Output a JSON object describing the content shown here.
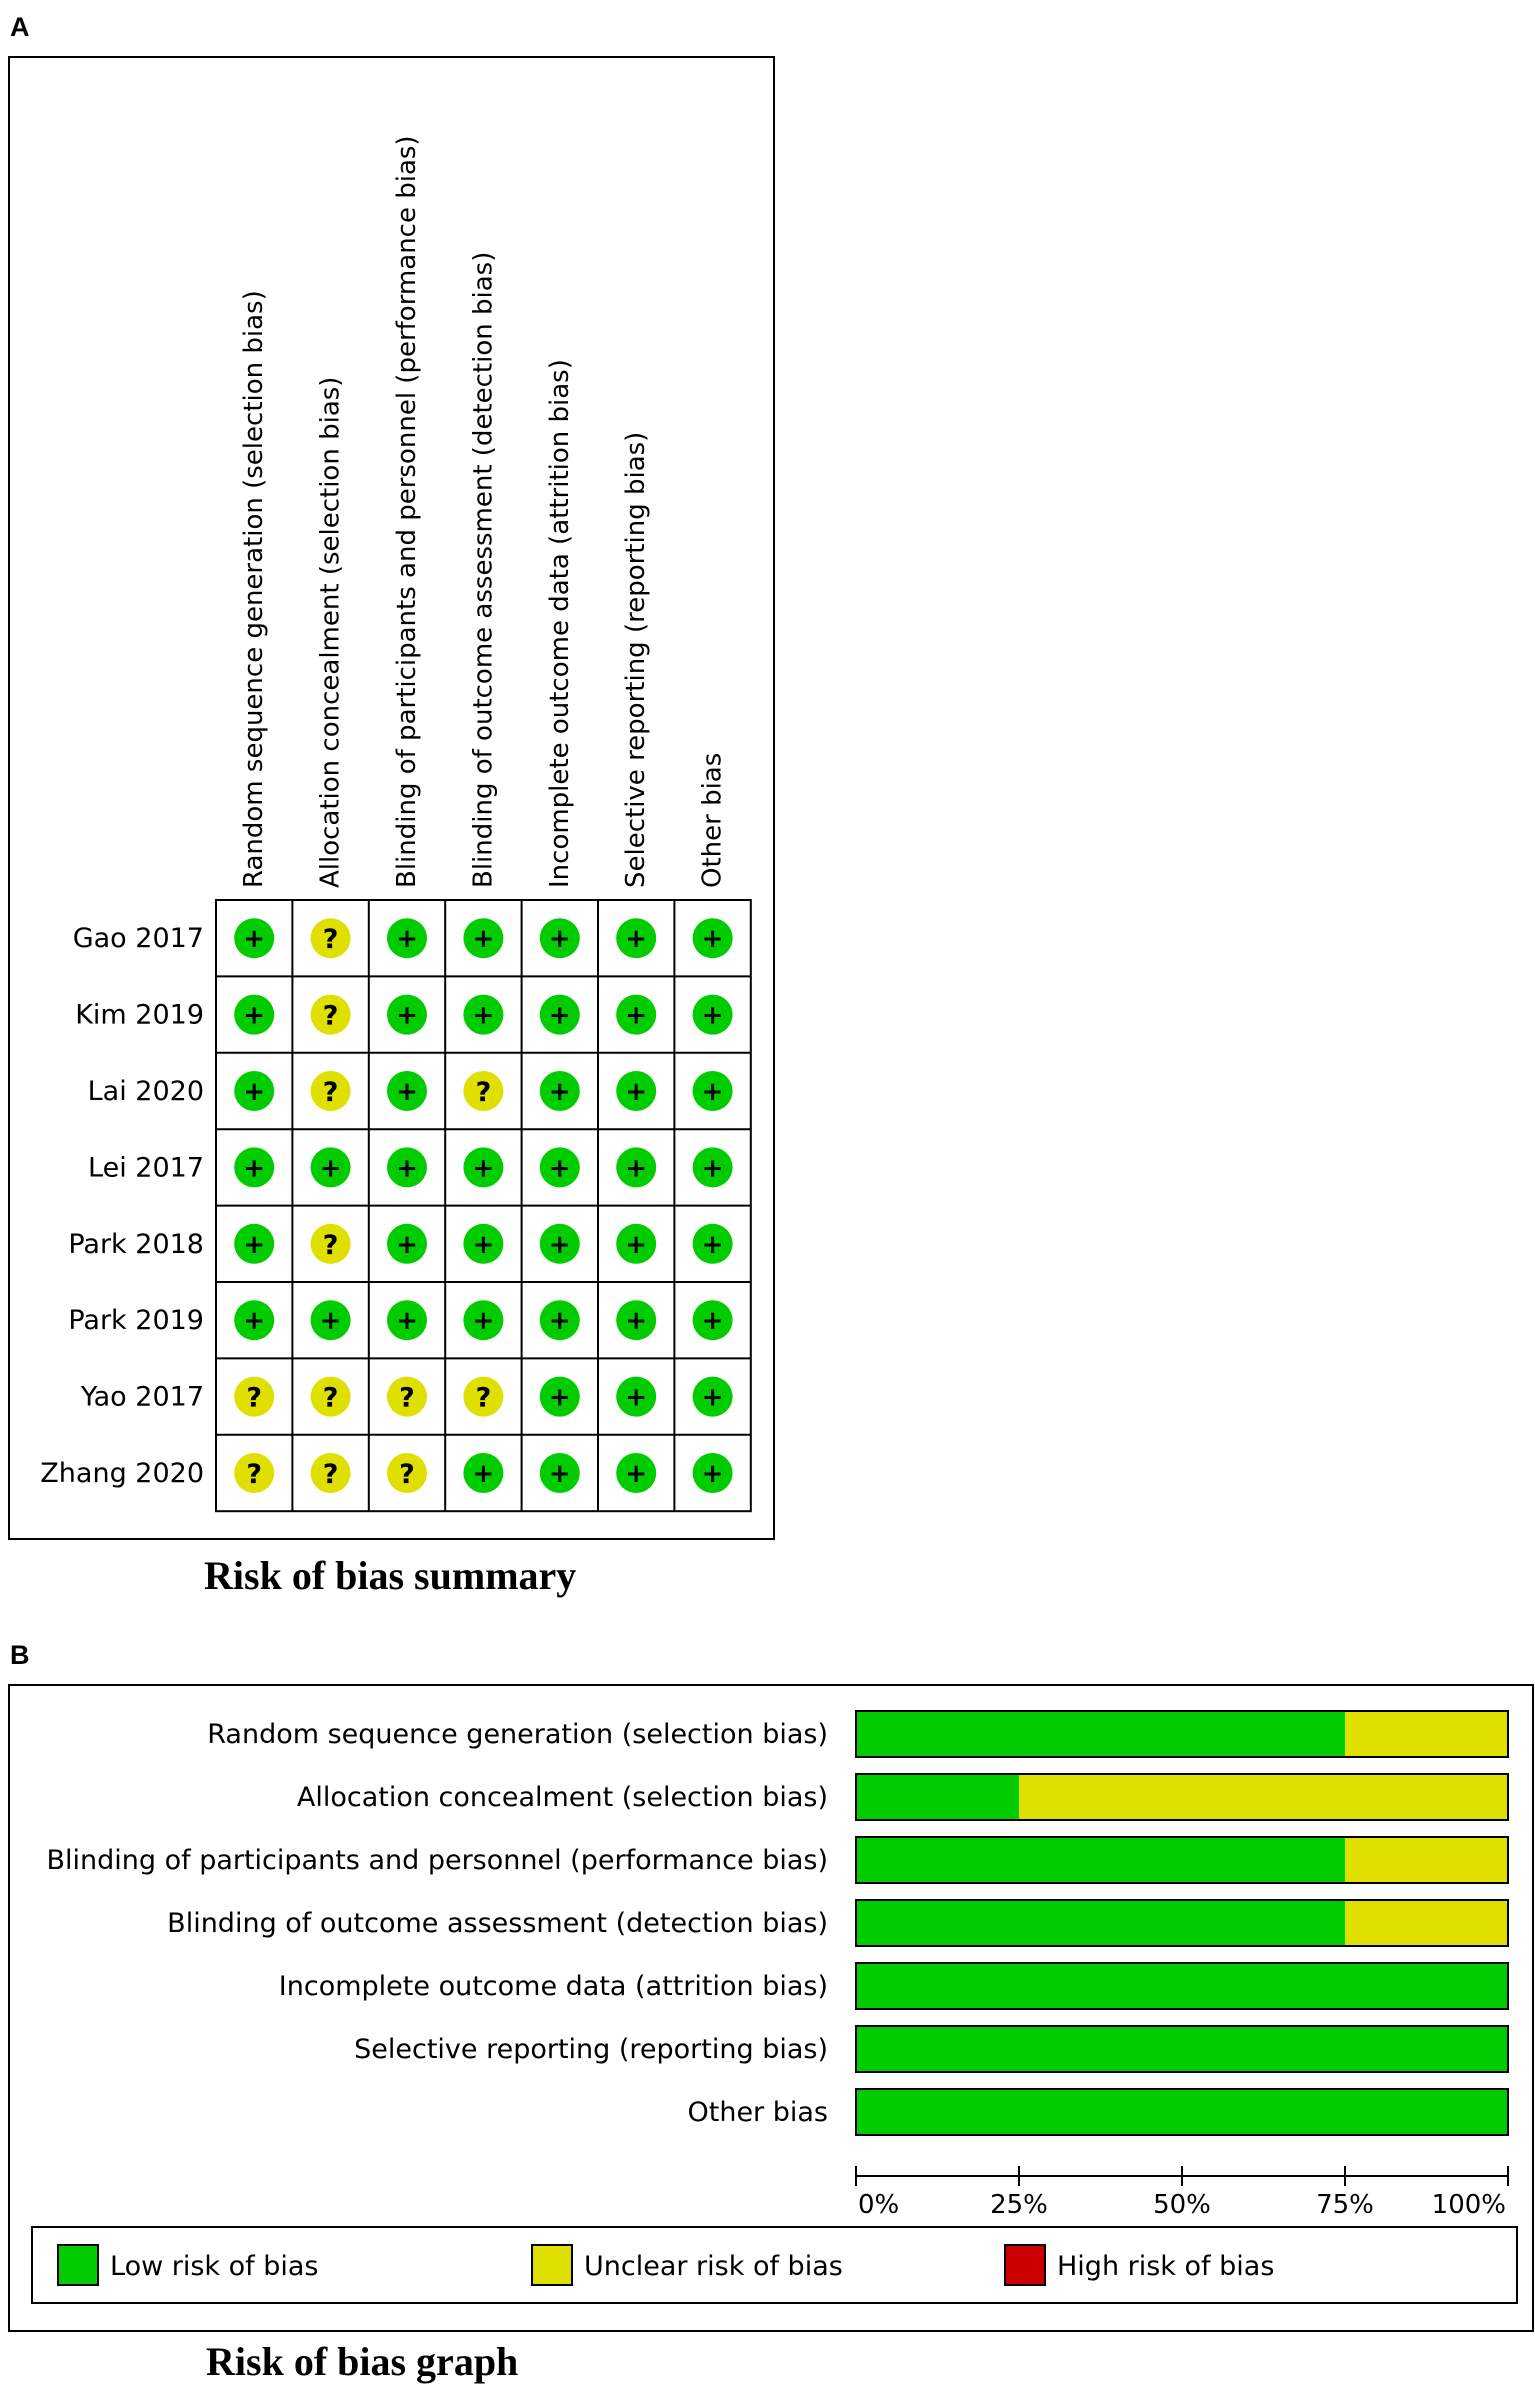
{
  "panel_a": {
    "letter": "A",
    "caption": "Risk of bias summary"
  },
  "panel_b": {
    "letter": "B",
    "caption": "Risk of bias graph"
  },
  "colors": {
    "low": "#00cc00",
    "unclear": "#e0e000",
    "high": "#cc0000"
  },
  "chart_data": [
    {
      "type": "table",
      "domains": [
        "Random sequence generation (selection bias)",
        "Allocation concealment (selection bias)",
        "Blinding of participants and personnel (performance bias)",
        "Blinding of outcome assessment (detection bias)",
        "Incomplete outcome data (attrition bias)",
        "Selective reporting (reporting bias)",
        "Other bias"
      ],
      "studies": [
        "Gao 2017",
        "Kim 2019",
        "Lai 2020",
        "Lei 2017",
        "Park 2018",
        "Park 2019",
        "Yao 2017",
        "Zhang 2020"
      ],
      "judgements": [
        [
          "+",
          "?",
          "+",
          "+",
          "+",
          "+",
          "+"
        ],
        [
          "+",
          "?",
          "+",
          "+",
          "+",
          "+",
          "+"
        ],
        [
          "+",
          "?",
          "+",
          "?",
          "+",
          "+",
          "+"
        ],
        [
          "+",
          "+",
          "+",
          "+",
          "+",
          "+",
          "+"
        ],
        [
          "+",
          "?",
          "+",
          "+",
          "+",
          "+",
          "+"
        ],
        [
          "+",
          "+",
          "+",
          "+",
          "+",
          "+",
          "+"
        ],
        [
          "?",
          "?",
          "?",
          "?",
          "+",
          "+",
          "+"
        ],
        [
          "?",
          "?",
          "?",
          "+",
          "+",
          "+",
          "+"
        ]
      ]
    },
    {
      "type": "bar",
      "orientation": "horizontal",
      "stacked": true,
      "categories": [
        "Random sequence generation (selection bias)",
        "Allocation concealment (selection bias)",
        "Blinding of participants and personnel (performance bias)",
        "Blinding of outcome assessment (detection bias)",
        "Incomplete outcome data (attrition bias)",
        "Selective reporting (reporting bias)",
        "Other bias"
      ],
      "series": [
        {
          "name": "Low risk of bias",
          "color": "#00cc00",
          "values": [
            75,
            25,
            75,
            75,
            100,
            100,
            100
          ]
        },
        {
          "name": "Unclear risk of bias",
          "color": "#e0e000",
          "values": [
            25,
            75,
            25,
            25,
            0,
            0,
            0
          ]
        },
        {
          "name": "High risk of bias",
          "color": "#cc0000",
          "values": [
            0,
            0,
            0,
            0,
            0,
            0,
            0
          ]
        }
      ],
      "xticks": [
        "0%",
        "25%",
        "50%",
        "75%",
        "100%"
      ],
      "xlim": [
        0,
        100
      ],
      "legend_position": "bottom"
    }
  ]
}
